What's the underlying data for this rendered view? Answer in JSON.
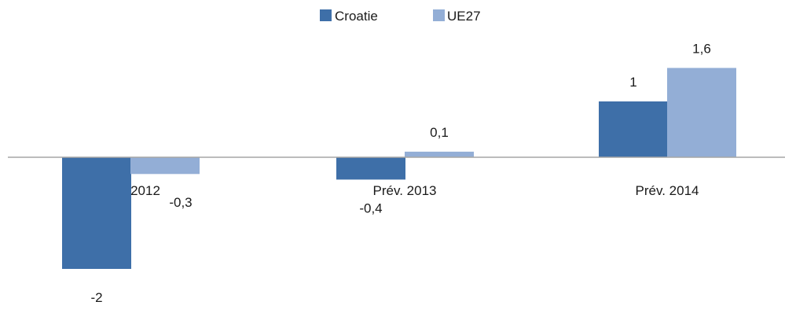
{
  "chart_data": {
    "type": "bar",
    "categories": [
      "2012",
      "Prév. 2013",
      "Prév. 2014"
    ],
    "series": [
      {
        "name": "Croatie",
        "values": [
          -2,
          -0.4,
          1
        ],
        "labels": [
          "-2",
          "-0,4",
          "1"
        ],
        "color": "#3e6fa8"
      },
      {
        "name": "UE27",
        "values": [
          -0.3,
          0.1,
          1.6
        ],
        "labels": [
          "-0,3",
          "0,1",
          "1,6"
        ],
        "color": "#93aed6"
      }
    ],
    "ylim": [
      -2.5,
      2.2
    ],
    "grid": false,
    "legend_position": "top-center",
    "axis_color": "#a6a6a6",
    "title": "",
    "xlabel": "",
    "ylabel": ""
  }
}
